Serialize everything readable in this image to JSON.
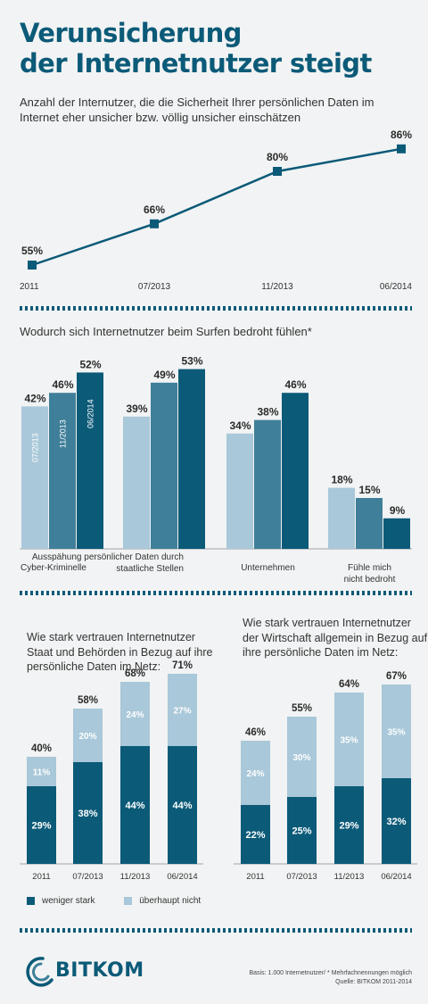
{
  "header": {
    "title_line1": "Verunsicherung",
    "title_line2": "der Internetnutzer steigt",
    "subtitle": "Anzahl der Internutzer, die die Sicherheit Ihrer persönlichen Daten im Internet eher unsicher bzw. völlig unsicher einschätzen"
  },
  "colors": {
    "dark": "#0b5a78",
    "mid": "#3f7f99",
    "light": "#a9c8d9",
    "bg": "#f2f3f4",
    "divider": "#0b5a78"
  },
  "chart_data": [
    {
      "type": "line",
      "title": "Anzahl der Internutzer, die die Sicherheit Ihrer persönlichen Daten im Internet eher unsicher bzw. völlig unsicher einschätzen",
      "categories": [
        "2011",
        "07/2013",
        "11/2013",
        "06/2014"
      ],
      "values": [
        55,
        66,
        80,
        86
      ],
      "value_labels": [
        "55%",
        "66%",
        "80%",
        "86%"
      ],
      "ylim": [
        50,
        90
      ],
      "grid": false
    },
    {
      "type": "bar",
      "title": "Wodurch sich Internetnutzer beim Surfen bedroht fühlen*",
      "categories": [
        "Cyber-Kriminelle",
        "Ausspähung persönlicher Daten durch staatliche Stellen",
        "Unternehmen",
        "Fühle mich nicht bedroht"
      ],
      "category_labels": [
        [
          "Cyber-Kriminelle"
        ],
        [
          "Ausspähung persönlicher Daten durch",
          "staatliche Stellen"
        ],
        [
          "Unternehmen"
        ],
        [
          "Fühle mich",
          "nicht bedroht"
        ]
      ],
      "series": [
        {
          "name": "07/2013",
          "values": [
            42,
            39,
            34,
            18
          ]
        },
        {
          "name": "11/2013",
          "values": [
            46,
            49,
            38,
            15
          ]
        },
        {
          "name": "06/2014",
          "values": [
            52,
            53,
            46,
            9
          ]
        }
      ],
      "value_labels": [
        [
          "42%",
          "39%",
          "34%",
          "18%"
        ],
        [
          "46%",
          "49%",
          "38%",
          "15%"
        ],
        [
          "52%",
          "53%",
          "46%",
          "9%"
        ]
      ],
      "ylim": [
        0,
        60
      ]
    },
    {
      "type": "bar",
      "stacked": true,
      "title": "Wie stark vertrauen Internetnutzer Staat und Behörden in Bezug auf ihre persönliche Daten im Netz:",
      "categories": [
        "2011",
        "07/2013",
        "11/2013",
        "06/2014"
      ],
      "series": [
        {
          "name": "weniger stark",
          "values": [
            29,
            38,
            44,
            44
          ],
          "labels": [
            "29%",
            "38%",
            "44%",
            "44%"
          ]
        },
        {
          "name": "überhaupt nicht",
          "values": [
            11,
            20,
            24,
            27
          ],
          "labels": [
            "11%",
            "20%",
            "24%",
            "27%"
          ]
        }
      ],
      "totals": [
        "40%",
        "58%",
        "68%",
        "71%"
      ],
      "ylim": [
        0,
        75
      ]
    },
    {
      "type": "bar",
      "stacked": true,
      "title": "Wie stark vertrauen Internetnutzer der Wirtschaft allgemein in Bezug auf ihre persönliche Daten im Netz:",
      "categories": [
        "2011",
        "07/2013",
        "11/2013",
        "06/2014"
      ],
      "series": [
        {
          "name": "weniger stark",
          "values": [
            22,
            25,
            29,
            32
          ],
          "labels": [
            "22%",
            "25%",
            "29%",
            "32%"
          ]
        },
        {
          "name": "überhaupt nicht",
          "values": [
            24,
            30,
            35,
            35
          ],
          "labels": [
            "24%",
            "30%",
            "35%",
            "35%"
          ]
        }
      ],
      "totals": [
        "46%",
        "55%",
        "64%",
        "67%"
      ],
      "ylim": [
        0,
        75
      ]
    }
  ],
  "sections": {
    "threat_title": "Wodurch sich Internetnutzer beim Surfen bedroht fühlen*",
    "trust_state_title": "Wie stark vertrauen Internetnutzer Staat und Behörden in Bezug auf ihre persönliche Daten im Netz:",
    "trust_business_title": "Wie stark vertrauen Internetnutzer der Wirtschaft allgemein in Bezug auf ihre persönliche Daten im Netz:"
  },
  "legend": {
    "dark_label": "weniger stark",
    "light_label": "überhaupt nicht"
  },
  "footer": {
    "logo_text": "BITKOM",
    "note_line1": "Basis: 1.000 Internetnutzer/ * Mehrfachnennungen möglich",
    "note_line2": "Quelle: BITKOM 2011-2014"
  }
}
